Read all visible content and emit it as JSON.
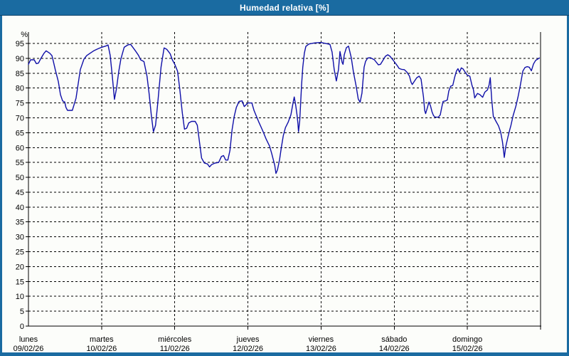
{
  "window": {
    "title": "Humedad relativa [%]"
  },
  "colors": {
    "frame": "#1a6ba1",
    "frame_dark": "#0d4168",
    "panel_bg": "#fcfdfa",
    "line": "#0f0fa8",
    "grid": "#000000",
    "text": "#000000",
    "title_text": "#ffffff"
  },
  "chart_data": {
    "type": "line",
    "title": "Humedad relativa [%]",
    "ylabel": "%",
    "ylim": [
      0,
      100
    ],
    "yticks": [
      0,
      5,
      10,
      15,
      20,
      25,
      30,
      35,
      40,
      45,
      50,
      55,
      60,
      65,
      70,
      75,
      80,
      85,
      90,
      95
    ],
    "grid": "dashed",
    "legend": "none",
    "x_axis": {
      "unit": "hours",
      "range_hours": [
        0,
        168
      ],
      "day_labels": [
        {
          "name": "lunes",
          "date": "09/02/26"
        },
        {
          "name": "martes",
          "date": "10/02/26"
        },
        {
          "name": "miércoles",
          "date": "11/02/26"
        },
        {
          "name": "jueves",
          "date": "12/02/26"
        },
        {
          "name": "viernes",
          "date": "13/02/26"
        },
        {
          "name": "sábado",
          "date": "14/02/26"
        },
        {
          "name": "domingo",
          "date": "15/02/26"
        }
      ]
    },
    "series": [
      {
        "name": "Humedad relativa",
        "color": "#0f0fa8",
        "points": [
          [
            0,
            88
          ],
          [
            0.7,
            89.5
          ],
          [
            1.9,
            89.5
          ],
          [
            2.6,
            88.2
          ],
          [
            3.3,
            88.4
          ],
          [
            4,
            89.8
          ],
          [
            5.1,
            91.7
          ],
          [
            5.8,
            92.5
          ],
          [
            7,
            91.7
          ],
          [
            7.7,
            90.9
          ],
          [
            8.1,
            89.3
          ],
          [
            8.8,
            86.2
          ],
          [
            9.8,
            82.2
          ],
          [
            10.5,
            77.8
          ],
          [
            11.2,
            75.7
          ],
          [
            11.9,
            75.3
          ],
          [
            12.3,
            73.5
          ],
          [
            12.8,
            72.5
          ],
          [
            14.4,
            72.5
          ],
          [
            15.6,
            76.6
          ],
          [
            16.3,
            81.4
          ],
          [
            17,
            86.2
          ],
          [
            18.2,
            89.7
          ],
          [
            19.1,
            90.9
          ],
          [
            20.2,
            91.7
          ],
          [
            21.4,
            92.5
          ],
          [
            22.6,
            93.1
          ],
          [
            24,
            93.7
          ],
          [
            25.6,
            94.2
          ],
          [
            26.1,
            94.5
          ],
          [
            26.8,
            91
          ],
          [
            27.5,
            84
          ],
          [
            28.2,
            76.2
          ],
          [
            28.9,
            80
          ],
          [
            29.6,
            85.5
          ],
          [
            30.3,
            89.7
          ],
          [
            31.4,
            93.7
          ],
          [
            32.6,
            94.5
          ],
          [
            33.5,
            94.7
          ],
          [
            34.4,
            93.5
          ],
          [
            35.1,
            92.5
          ],
          [
            36.1,
            91
          ],
          [
            36.8,
            89.5
          ],
          [
            37.9,
            88.9
          ],
          [
            38.9,
            84
          ],
          [
            39.6,
            78
          ],
          [
            40.3,
            71
          ],
          [
            41,
            65.3
          ],
          [
            41.7,
            67.5
          ],
          [
            42.4,
            74.7
          ],
          [
            43.5,
            87
          ],
          [
            44.5,
            93.5
          ],
          [
            45.4,
            93
          ],
          [
            46.5,
            91.5
          ],
          [
            47.2,
            89.5
          ],
          [
            48,
            88
          ],
          [
            48.9,
            85.7
          ],
          [
            49.6,
            80
          ],
          [
            50.5,
            71.5
          ],
          [
            51.2,
            66.2
          ],
          [
            51.9,
            66.5
          ],
          [
            52.6,
            68.3
          ],
          [
            53.5,
            68.8
          ],
          [
            54.7,
            68.8
          ],
          [
            55.4,
            67.5
          ],
          [
            56.1,
            62
          ],
          [
            56.8,
            56.5
          ],
          [
            57.7,
            54.8
          ],
          [
            58.7,
            54.5
          ],
          [
            59.4,
            53.5
          ],
          [
            60.1,
            54.3
          ],
          [
            61.2,
            54.8
          ],
          [
            62.4,
            55
          ],
          [
            63.3,
            57
          ],
          [
            64,
            57.3
          ],
          [
            64.7,
            55.8
          ],
          [
            65.4,
            55.8
          ],
          [
            66.1,
            59
          ],
          [
            66.8,
            66
          ],
          [
            67.5,
            70.5
          ],
          [
            68.2,
            73.5
          ],
          [
            69.1,
            75.5
          ],
          [
            70.1,
            75.7
          ],
          [
            70.8,
            73.8
          ],
          [
            71.5,
            74.5
          ],
          [
            72,
            75
          ],
          [
            73.3,
            75
          ],
          [
            74,
            72.5
          ],
          [
            75,
            70
          ],
          [
            75.6,
            68.5
          ],
          [
            76.8,
            65.8
          ],
          [
            78,
            62.8
          ],
          [
            79.1,
            60.5
          ],
          [
            79.8,
            58
          ],
          [
            80.8,
            54
          ],
          [
            81.2,
            51.3
          ],
          [
            81.7,
            52.5
          ],
          [
            82.4,
            56
          ],
          [
            82.9,
            59.6
          ],
          [
            83.6,
            64
          ],
          [
            84.3,
            66.7
          ],
          [
            85.2,
            68.5
          ],
          [
            86.1,
            71
          ],
          [
            86.8,
            75
          ],
          [
            87.2,
            77
          ],
          [
            87.7,
            74
          ],
          [
            88.1,
            71
          ],
          [
            88.4,
            68
          ],
          [
            88.6,
            65.3
          ],
          [
            89,
            69
          ],
          [
            89.3,
            75
          ],
          [
            89.6,
            81
          ],
          [
            90,
            87
          ],
          [
            90.5,
            91.7
          ],
          [
            91,
            94
          ],
          [
            92,
            94.8
          ],
          [
            94,
            95.2
          ],
          [
            96,
            95.3
          ],
          [
            98.9,
            94.7
          ],
          [
            99.6,
            92.1
          ],
          [
            100.3,
            86.2
          ],
          [
            101,
            82.4
          ],
          [
            101.7,
            86.2
          ],
          [
            102.2,
            92.3
          ],
          [
            102.9,
            88.6
          ],
          [
            103.2,
            88
          ],
          [
            103.6,
            91.2
          ],
          [
            104.3,
            93.6
          ],
          [
            105,
            94.1
          ],
          [
            105.9,
            90.2
          ],
          [
            106.6,
            85.4
          ],
          [
            107.5,
            80.7
          ],
          [
            108.2,
            76.3
          ],
          [
            108.8,
            75.2
          ],
          [
            109.4,
            78.3
          ],
          [
            110.1,
            87
          ],
          [
            110.6,
            89
          ],
          [
            111.3,
            90.1
          ],
          [
            112.2,
            90.2
          ],
          [
            113.5,
            89.5
          ],
          [
            114.8,
            87.8
          ],
          [
            115.5,
            88
          ],
          [
            116.3,
            89.3
          ],
          [
            117.1,
            90.7
          ],
          [
            117.9,
            91.2
          ],
          [
            118.6,
            90.7
          ],
          [
            119.3,
            89.8
          ],
          [
            120,
            88.9
          ],
          [
            121,
            87.5
          ],
          [
            121.6,
            86.6
          ],
          [
            122.4,
            86.3
          ],
          [
            123.3,
            86.2
          ],
          [
            124.2,
            85.3
          ],
          [
            125,
            84
          ],
          [
            125.5,
            82
          ],
          [
            125.9,
            81.2
          ],
          [
            126.6,
            82.3
          ],
          [
            127.4,
            83.5
          ],
          [
            128.2,
            84
          ],
          [
            128.8,
            83
          ],
          [
            129.2,
            80
          ],
          [
            129.6,
            77
          ],
          [
            130,
            72.5
          ],
          [
            130.3,
            71.4
          ],
          [
            130.9,
            73.5
          ],
          [
            131.4,
            75.3
          ],
          [
            131.9,
            74
          ],
          [
            132.4,
            72
          ],
          [
            132.9,
            70.7
          ],
          [
            133.5,
            70.2
          ],
          [
            134.5,
            70.2
          ],
          [
            135.1,
            71
          ],
          [
            135.6,
            73.5
          ],
          [
            136,
            75.5
          ],
          [
            136.8,
            75.7
          ],
          [
            137.4,
            76
          ],
          [
            137.9,
            79
          ],
          [
            138.5,
            80.6
          ],
          [
            139.2,
            80.9
          ],
          [
            139.8,
            83.5
          ],
          [
            140.4,
            85.7
          ],
          [
            140.9,
            86.5
          ],
          [
            141.4,
            85.3
          ],
          [
            142,
            86.8
          ],
          [
            142.6,
            86.4
          ],
          [
            143.3,
            85.3
          ],
          [
            144,
            84.3
          ],
          [
            144.8,
            84
          ],
          [
            145.5,
            80.9
          ],
          [
            146,
            79.4
          ],
          [
            146.4,
            76.7
          ],
          [
            147.3,
            78.2
          ],
          [
            148.1,
            77.8
          ],
          [
            149,
            76.9
          ],
          [
            149.7,
            78.6
          ],
          [
            150.6,
            79.4
          ],
          [
            151.1,
            81
          ],
          [
            151.5,
            83.5
          ],
          [
            152,
            76
          ],
          [
            152.5,
            70.5
          ],
          [
            153.4,
            68.8
          ],
          [
            154.2,
            67.3
          ],
          [
            154.9,
            65.2
          ],
          [
            155.5,
            62
          ],
          [
            155.8,
            59.6
          ],
          [
            156.1,
            56.7
          ],
          [
            156.6,
            60.3
          ],
          [
            157.3,
            63.5
          ],
          [
            157.9,
            66
          ],
          [
            158.3,
            67.5
          ],
          [
            159,
            70.7
          ],
          [
            159.9,
            73.9
          ],
          [
            160.6,
            77
          ],
          [
            161.3,
            80.6
          ],
          [
            161.8,
            83.4
          ],
          [
            162.2,
            85.7
          ],
          [
            162.9,
            86.9
          ],
          [
            163.6,
            87.2
          ],
          [
            164.3,
            87
          ],
          [
            165,
            85.8
          ],
          [
            165.7,
            88.1
          ],
          [
            166.4,
            89.3
          ],
          [
            167.6,
            90.1
          ]
        ]
      }
    ]
  }
}
